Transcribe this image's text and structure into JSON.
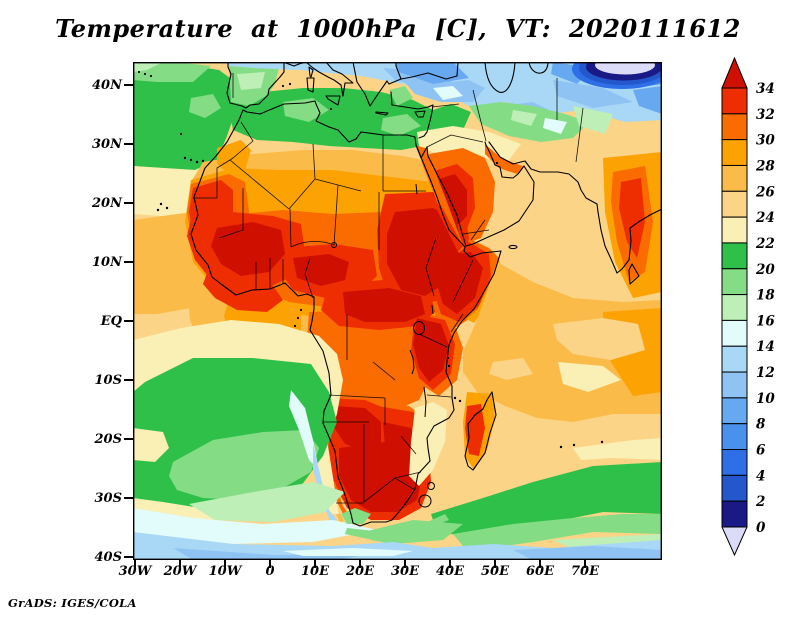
{
  "title": "Temperature at 1000hPa [C], VT: 2020111612",
  "credit": "GrADS: IGES/COLA",
  "axes": {
    "lat_labels": [
      "40N",
      "30N",
      "20N",
      "10N",
      "EQ",
      "10S",
      "20S",
      "30S",
      "40S"
    ],
    "lon_labels": [
      "30W",
      "20W",
      "10W",
      "0",
      "10E",
      "20E",
      "30E",
      "40E",
      "50E",
      "60E",
      "70E"
    ]
  },
  "colorbar": {
    "orientation": "vertical",
    "tick_labels": [
      "34",
      "32",
      "30",
      "28",
      "26",
      "24",
      "22",
      "20",
      "18",
      "16",
      "14",
      "12",
      "10",
      "8",
      "6",
      "4",
      "2",
      "0"
    ],
    "over_color": "#CF1000",
    "under_color": "#DCDCF8",
    "segment_colors": [
      "#EE2E00",
      "#FA6C00",
      "#FCA203",
      "#FBBB49",
      "#FBD488",
      "#FAEFB4",
      "#2FC04A",
      "#84DC84",
      "#BDEFB6",
      "#E2FBFB",
      "#A9D8F6",
      "#8FC3F3",
      "#67A9F0",
      "#4A90ED",
      "#2E6FE8",
      "#2456CC",
      "#1A1A86"
    ]
  },
  "colors": {
    "background": "#FFFFFF",
    "frame": "#000000",
    "map_palette": {
      "hot": "#CF1000",
      "t32": "#EE2E00",
      "t30": "#FA6C00",
      "t28": "#FCA203",
      "t26": "#FBBB49",
      "t24": "#FBD488",
      "t22": "#FAEFB4",
      "t20": "#2FC04A",
      "t18": "#84DC84",
      "t16": "#BDEFB6",
      "t14": "#E2FBFB",
      "t12": "#A9D8F6",
      "t10": "#8FC3F3",
      "t8": "#67A9F0",
      "t6": "#4A90ED",
      "t4": "#2E6FE8",
      "t2": "#2456CC",
      "t0": "#1A1A86",
      "under": "#DCDCF8"
    }
  },
  "chart_data": {
    "type": "heatmap",
    "subtype": "filled-contour weather map",
    "title": "Temperature at 1000hPa [C], VT: 2020111612",
    "variable": "air temperature at 1000 hPa",
    "units": "C",
    "valid_time_label": "2020111612",
    "region": "Africa, Mediterranean, Middle East, tropical Atlantic and Indian Ocean",
    "lon_ticks": [
      "30W",
      "20W",
      "10W",
      "0",
      "10E",
      "20E",
      "30E",
      "40E",
      "50E",
      "60E",
      "70E"
    ],
    "lat_ticks": [
      "40N",
      "30N",
      "20N",
      "10N",
      "EQ",
      "10S",
      "20S",
      "30S",
      "40S"
    ],
    "contour_interval": 2,
    "levels": [
      0,
      2,
      4,
      6,
      8,
      10,
      12,
      14,
      16,
      18,
      20,
      22,
      24,
      26,
      28,
      30,
      32,
      34
    ],
    "legend_position": "right",
    "grid": "off",
    "field_estimates": [
      {
        "area": "North Atlantic off NW Africa",
        "approx_temp_c": "18-22"
      },
      {
        "area": "Mediterranean Sea and coastal North Africa",
        "approx_temp_c": "18-22"
      },
      {
        "area": "Iberia",
        "approx_temp_c": "14-18"
      },
      {
        "area": "Anatolia / Black Sea region",
        "approx_temp_c": "4-12"
      },
      {
        "area": "Central Asia (top-right pocket)",
        "approx_temp_c": "below 0"
      },
      {
        "area": "Sahara (Mauritania / Mali / Niger)",
        "approx_temp_c": "30-34"
      },
      {
        "area": "Libya / Egypt interior",
        "approx_temp_c": "22-26"
      },
      {
        "area": "Sudan / Chad",
        "approx_temp_c": "32 to above 34"
      },
      {
        "area": "Sahel and Guinea coast",
        "approx_temp_c": "30-34"
      },
      {
        "area": "Congo basin",
        "approx_temp_c": "28-32"
      },
      {
        "area": "Ethiopia / Horn of Africa",
        "approx_temp_c": "32 to above 34"
      },
      {
        "area": "Lake Victoria surroundings",
        "approx_temp_c": "above 34"
      },
      {
        "area": "Western Arabia / Red Sea",
        "approx_temp_c": "30 to above 34"
      },
      {
        "area": "Arabian Sea / northern Indian Ocean",
        "approx_temp_c": "24-28"
      },
      {
        "area": "NW India coast strip",
        "approx_temp_c": "30-34"
      },
      {
        "area": "Equatorial Atlantic (Gulf of Guinea)",
        "approx_temp_c": "24-28"
      },
      {
        "area": "South Atlantic cool pool near 20S",
        "approx_temp_c": "18-22"
      },
      {
        "area": "Namibia / Botswana / South Africa interior",
        "approx_temp_c": "above 34"
      },
      {
        "area": "Madagascar west",
        "approx_temp_c": "30-34"
      },
      {
        "area": "Southern Ocean band 35-40S",
        "approx_temp_c": "8-14"
      }
    ]
  }
}
